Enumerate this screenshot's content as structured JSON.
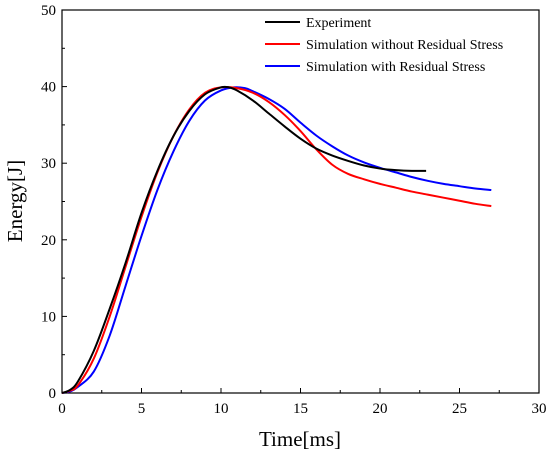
{
  "chart_data": {
    "type": "line",
    "xlabel": "Time[ms]",
    "ylabel": "Energy[J]",
    "xlim": [
      0,
      30
    ],
    "ylim": [
      0,
      50
    ],
    "xticks": [
      0,
      5,
      10,
      15,
      20,
      25,
      30
    ],
    "yticks": [
      0,
      10,
      20,
      30,
      40,
      50
    ],
    "legend_position": "top-right",
    "grid": false,
    "series": [
      {
        "name": "Experiment",
        "color": "#000000",
        "x": [
          0,
          0.5,
          1,
          2,
          3,
          4,
          5,
          6,
          7,
          8,
          9,
          10,
          10.5,
          11,
          12,
          13,
          14,
          15,
          16,
          17,
          18,
          19,
          20,
          21,
          22,
          22.9
        ],
        "y": [
          0,
          0.4,
          1.5,
          5.5,
          11,
          17,
          23.5,
          29,
          33.5,
          36.8,
          39,
          39.9,
          39.9,
          39.5,
          38.2,
          36.5,
          34.8,
          33.2,
          31.9,
          31,
          30.3,
          29.7,
          29.3,
          29.1,
          29,
          29
        ]
      },
      {
        "name": "Simulation without Residual Stress",
        "color": "#ff0000",
        "x": [
          0,
          0.5,
          1,
          2,
          3,
          4,
          5,
          6,
          7,
          8,
          9,
          10,
          11,
          12,
          13,
          14,
          15,
          16,
          17,
          18,
          19,
          20,
          21,
          22,
          23,
          24,
          25,
          26,
          27
        ],
        "y": [
          0,
          0.3,
          1,
          4.5,
          10,
          16.5,
          23,
          28.8,
          33.5,
          37,
          39.2,
          39.9,
          39.8,
          39.2,
          38,
          36.3,
          34.2,
          31.8,
          29.8,
          28.6,
          27.9,
          27.3,
          26.8,
          26.3,
          25.9,
          25.5,
          25.1,
          24.7,
          24.4
        ]
      },
      {
        "name": "Simulation with Residual Stress",
        "color": "#0000ff",
        "x": [
          0,
          0.5,
          1,
          2,
          3,
          4,
          5,
          6,
          7,
          8,
          9,
          10,
          10.8,
          11.5,
          12,
          13,
          14,
          15,
          16,
          17,
          18,
          19,
          20,
          21,
          22,
          23,
          24,
          25,
          26,
          27
        ],
        "y": [
          0,
          0.2,
          0.8,
          2.8,
          7.5,
          14,
          20.5,
          26.5,
          31.5,
          35.5,
          38.2,
          39.5,
          39.9,
          39.8,
          39.4,
          38.4,
          37.1,
          35.3,
          33.6,
          32.2,
          31,
          30.1,
          29.4,
          28.8,
          28.2,
          27.7,
          27.3,
          27,
          26.7,
          26.5
        ]
      }
    ]
  }
}
